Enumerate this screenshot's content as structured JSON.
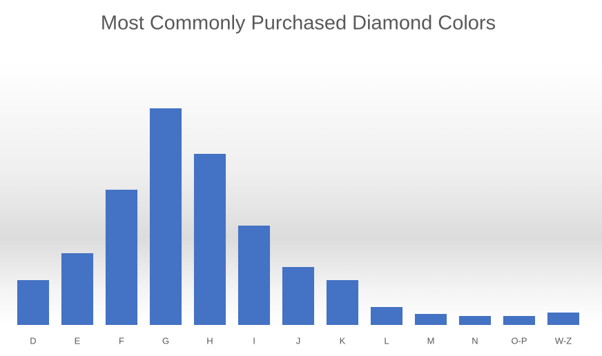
{
  "chart_data": {
    "type": "bar",
    "title": "Most Commonly Purchased Diamond Colors",
    "categories": [
      "D",
      "E",
      "F",
      "G",
      "H",
      "I",
      "J",
      "K",
      "L",
      "M",
      "N",
      "O-P",
      "W-Z"
    ],
    "values": [
      65,
      104,
      196,
      314,
      248,
      144,
      84,
      65,
      26,
      16,
      13,
      13,
      18
    ],
    "color": "#4472c4",
    "ylim": [
      0,
      341
    ]
  }
}
